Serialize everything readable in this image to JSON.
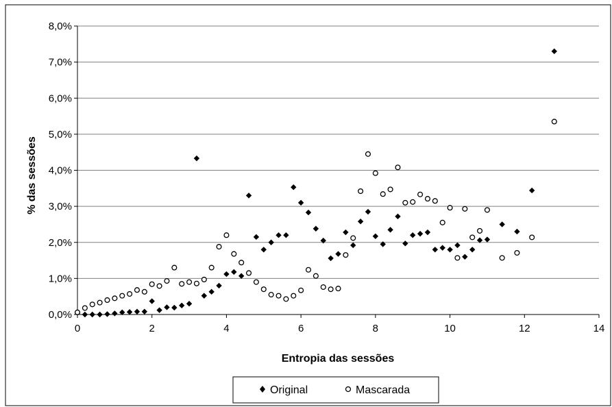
{
  "chart_data": {
    "type": "scatter",
    "title": "",
    "xlabel": "Entropia das sessões",
    "ylabel": "% das sessões",
    "xlim": [
      0,
      14
    ],
    "ylim": [
      0,
      8
    ],
    "x_ticks": [
      "0",
      "2",
      "4",
      "6",
      "8",
      "10",
      "12",
      "14"
    ],
    "y_ticks": [
      "0,0%",
      "1,0%",
      "2,0%",
      "3,0%",
      "4,0%",
      "5,0%",
      "6,0%",
      "7,0%",
      "8,0%"
    ],
    "grid": "horizontal",
    "legend_position": "bottom",
    "series": [
      {
        "name": "Original",
        "marker": "diamond-filled",
        "points": [
          [
            0.0,
            0.05
          ],
          [
            0.2,
            0.0
          ],
          [
            0.4,
            0.0
          ],
          [
            0.6,
            0.0
          ],
          [
            0.8,
            0.01
          ],
          [
            1.0,
            0.03
          ],
          [
            1.2,
            0.06
          ],
          [
            1.4,
            0.07
          ],
          [
            1.6,
            0.08
          ],
          [
            1.8,
            0.08
          ],
          [
            2.0,
            0.37
          ],
          [
            2.2,
            0.12
          ],
          [
            2.4,
            0.2
          ],
          [
            2.6,
            0.19
          ],
          [
            2.8,
            0.25
          ],
          [
            3.0,
            0.3
          ],
          [
            3.2,
            4.33
          ],
          [
            3.4,
            0.52
          ],
          [
            3.6,
            0.63
          ],
          [
            3.8,
            0.8
          ],
          [
            4.0,
            1.12
          ],
          [
            4.2,
            1.18
          ],
          [
            4.4,
            1.07
          ],
          [
            4.6,
            3.3
          ],
          [
            4.8,
            2.15
          ],
          [
            5.0,
            1.8
          ],
          [
            5.2,
            2.0
          ],
          [
            5.4,
            2.2
          ],
          [
            5.6,
            2.2
          ],
          [
            5.8,
            3.53
          ],
          [
            6.0,
            3.1
          ],
          [
            6.2,
            2.83
          ],
          [
            6.4,
            2.38
          ],
          [
            6.6,
            2.05
          ],
          [
            6.8,
            1.56
          ],
          [
            7.0,
            1.68
          ],
          [
            7.2,
            2.28
          ],
          [
            7.4,
            1.92
          ],
          [
            7.6,
            2.58
          ],
          [
            7.8,
            2.85
          ],
          [
            8.0,
            2.17
          ],
          [
            8.2,
            1.95
          ],
          [
            8.4,
            2.35
          ],
          [
            8.6,
            2.72
          ],
          [
            8.8,
            1.97
          ],
          [
            9.0,
            2.2
          ],
          [
            9.2,
            2.24
          ],
          [
            9.4,
            2.28
          ],
          [
            9.6,
            1.8
          ],
          [
            9.8,
            1.85
          ],
          [
            10.0,
            1.8
          ],
          [
            10.2,
            1.92
          ],
          [
            10.4,
            1.6
          ],
          [
            10.6,
            1.8
          ],
          [
            10.8,
            2.06
          ],
          [
            11.0,
            2.08
          ],
          [
            11.4,
            2.5
          ],
          [
            11.8,
            2.3
          ],
          [
            12.2,
            3.44
          ],
          [
            12.8,
            7.3
          ]
        ]
      },
      {
        "name": "Mascarada",
        "marker": "circle-open",
        "points": [
          [
            0.0,
            0.06
          ],
          [
            0.2,
            0.18
          ],
          [
            0.4,
            0.28
          ],
          [
            0.6,
            0.33
          ],
          [
            0.8,
            0.4
          ],
          [
            1.0,
            0.45
          ],
          [
            1.2,
            0.52
          ],
          [
            1.4,
            0.57
          ],
          [
            1.6,
            0.68
          ],
          [
            1.8,
            0.63
          ],
          [
            2.0,
            0.84
          ],
          [
            2.2,
            0.79
          ],
          [
            2.4,
            0.93
          ],
          [
            2.6,
            1.3
          ],
          [
            2.8,
            0.85
          ],
          [
            3.0,
            0.9
          ],
          [
            3.2,
            0.86
          ],
          [
            3.4,
            0.97
          ],
          [
            3.6,
            1.3
          ],
          [
            3.8,
            1.88
          ],
          [
            4.0,
            2.2
          ],
          [
            4.2,
            1.68
          ],
          [
            4.4,
            1.44
          ],
          [
            4.6,
            1.15
          ],
          [
            4.8,
            0.9
          ],
          [
            5.0,
            0.7
          ],
          [
            5.2,
            0.55
          ],
          [
            5.4,
            0.52
          ],
          [
            5.6,
            0.43
          ],
          [
            5.8,
            0.52
          ],
          [
            6.0,
            0.67
          ],
          [
            6.2,
            1.24
          ],
          [
            6.4,
            1.07
          ],
          [
            6.6,
            0.76
          ],
          [
            6.8,
            0.7
          ],
          [
            7.0,
            0.72
          ],
          [
            7.2,
            1.65
          ],
          [
            7.4,
            2.12
          ],
          [
            7.6,
            3.42
          ],
          [
            7.8,
            4.45
          ],
          [
            8.0,
            3.92
          ],
          [
            8.2,
            3.34
          ],
          [
            8.4,
            3.47
          ],
          [
            8.6,
            4.08
          ],
          [
            8.8,
            3.1
          ],
          [
            9.0,
            3.12
          ],
          [
            9.2,
            3.33
          ],
          [
            9.4,
            3.21
          ],
          [
            9.6,
            3.15
          ],
          [
            9.8,
            2.55
          ],
          [
            10.0,
            2.96
          ],
          [
            10.2,
            1.57
          ],
          [
            10.4,
            2.93
          ],
          [
            10.6,
            2.14
          ],
          [
            10.8,
            2.32
          ],
          [
            11.0,
            2.9
          ],
          [
            11.4,
            1.57
          ],
          [
            11.8,
            1.71
          ],
          [
            12.2,
            2.14
          ],
          [
            12.8,
            5.35
          ]
        ]
      }
    ]
  }
}
